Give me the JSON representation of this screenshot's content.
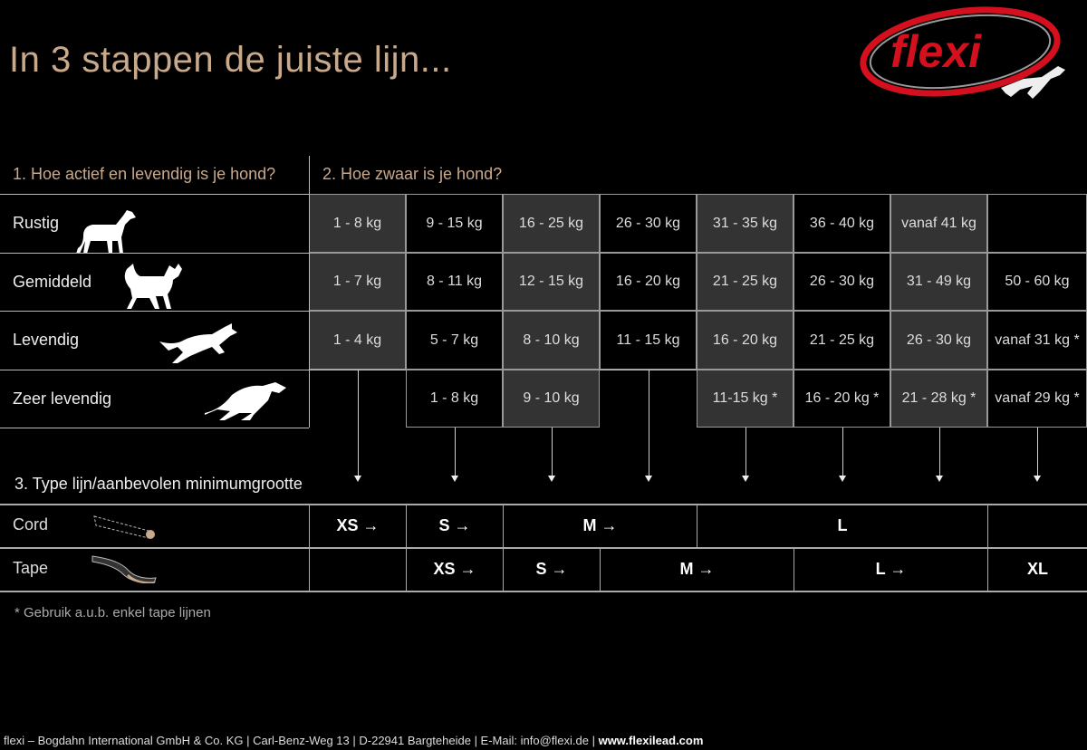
{
  "title": "In 3 stappen de juiste lijn...",
  "logo_text": "flexi",
  "step1": "1. Hoe actief en levendig is je hond?",
  "step2": "2. Hoe zwaar is je hond?",
  "step3": "3. Type lijn/aanbevolen minimumgrootte",
  "activity_rows": [
    {
      "label": "Rustig",
      "icon": "standing-dog-icon",
      "weights": [
        "1 - 8 kg",
        "9 - 15 kg",
        "16 - 25 kg",
        "26 - 30 kg",
        "31 - 35 kg",
        "36 - 40 kg",
        "vanaf 41 kg",
        ""
      ]
    },
    {
      "label": "Gemiddeld",
      "icon": "walking-dog-icon",
      "weights": [
        "1 - 7 kg",
        "8 - 11 kg",
        "12 - 15 kg",
        "16 - 20 kg",
        "21 - 25 kg",
        "26 - 30 kg",
        "31 - 49 kg",
        "50 - 60 kg"
      ]
    },
    {
      "label": "Levendig",
      "icon": "running-dog-icon",
      "weights": [
        "1 - 4 kg",
        "5 - 7 kg",
        "8 - 10 kg",
        "11 - 15 kg",
        "16 - 20 kg",
        "21 - 25 kg",
        "26 - 30 kg",
        "vanaf 31 kg *"
      ]
    },
    {
      "label": "Zeer levendig",
      "icon": "sprinting-dog-icon",
      "weights": [
        "",
        "1 - 8 kg",
        "9 - 10 kg",
        "",
        "11-15 kg *",
        "16 - 20 kg *",
        "21 - 28 kg *",
        "vanaf 29 kg *"
      ]
    }
  ],
  "leash_types": [
    {
      "label": "Cord",
      "icon": "cord-icon",
      "sizes": [
        {
          "text": "XS →",
          "span": 1
        },
        {
          "text": "S →",
          "span": 1
        },
        {
          "text": "M →",
          "span": 2
        },
        {
          "text": "L",
          "span": 3
        },
        {
          "text": "",
          "span": 1
        }
      ]
    },
    {
      "label": "Tape",
      "icon": "tape-icon",
      "sizes": [
        {
          "text": "",
          "span": 1
        },
        {
          "text": "XS →",
          "span": 1
        },
        {
          "text": "S →",
          "span": 1
        },
        {
          "text": "M →",
          "span": 2
        },
        {
          "text": "L →",
          "span": 2
        },
        {
          "text": "XL",
          "span": 1
        }
      ]
    }
  ],
  "note": "* Gebruik a.u.b. enkel tape lijnen",
  "footer": {
    "text": "flexi – Bogdahn International GmbH & Co. KG | Carl-Benz-Weg 13 | D-22941 Bargteheide | E-Mail: info@flexi.de | ",
    "website": "www.flexilead.com"
  },
  "colors": {
    "title": "#c8a98c",
    "logo_red": "#d4101e",
    "cell_gray": "#333333",
    "background": "#000000"
  }
}
